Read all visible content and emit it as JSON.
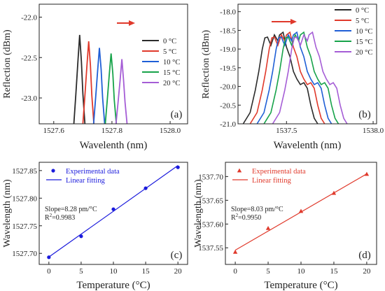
{
  "chart_data": [
    {
      "type": "line",
      "panel_label": "(a)",
      "xlabel": "Wavelenth (nm)",
      "ylabel": "Reflection (dBm)",
      "xlim": [
        1527.55,
        1528.06
      ],
      "ylim": [
        -23.32,
        -21.84
      ],
      "xticks": [
        1527.6,
        1527.8,
        1528.0
      ],
      "xtick_labels": [
        "1527.6",
        "1527.8",
        "1528.0"
      ],
      "yticks": [
        -22.0,
        -22.5,
        -23.0
      ],
      "ytick_labels": [
        "-22.0",
        "-22.5",
        "-23.0"
      ],
      "legend": {
        "position": "right",
        "entries": [
          "0   °C",
          "5   °C",
          "10 °C",
          "15 °C",
          "20 °C"
        ]
      },
      "annotation": "arrow pointing right (increasing temperature)",
      "series": [
        {
          "name": "0   °C",
          "color": "#2b2b2b",
          "x": [
            1527.669,
            1527.676,
            1527.683,
            1527.689,
            1527.695,
            1527.7,
            1527.707
          ],
          "y": [
            -23.32,
            -22.95,
            -22.55,
            -22.22,
            -22.55,
            -22.95,
            -23.32
          ]
        },
        {
          "name": "5   °C",
          "color": "#e0392b",
          "x": [
            1527.7,
            1527.707,
            1527.714,
            1527.72,
            1527.726,
            1527.731,
            1527.738
          ],
          "y": [
            -23.32,
            -22.97,
            -22.6,
            -22.3,
            -22.6,
            -22.97,
            -23.32
          ]
        },
        {
          "name": "10 °C",
          "color": "#1f5fd6",
          "x": [
            1527.737,
            1527.744,
            1527.751,
            1527.757,
            1527.763,
            1527.768,
            1527.775
          ],
          "y": [
            -23.32,
            -23.0,
            -22.65,
            -22.38,
            -22.65,
            -23.0,
            -23.32
          ]
        },
        {
          "name": "15 °C",
          "color": "#17a34a",
          "x": [
            1527.777,
            1527.784,
            1527.791,
            1527.797,
            1527.803,
            1527.808,
            1527.815
          ],
          "y": [
            -23.32,
            -23.02,
            -22.7,
            -22.45,
            -22.7,
            -23.02,
            -23.32
          ]
        },
        {
          "name": "20 °C",
          "color": "#a55dd6",
          "x": [
            1527.814,
            1527.821,
            1527.828,
            1527.834,
            1527.84,
            1527.845,
            1527.852
          ],
          "y": [
            -23.32,
            -23.05,
            -22.78,
            -22.52,
            -22.78,
            -23.05,
            -23.32
          ]
        }
      ]
    },
    {
      "type": "line",
      "panel_label": "(b)",
      "xlabel": "Wavelenth (nm)",
      "ylabel": "",
      "xlim": [
        1537.22,
        1538.02
      ],
      "ylim": [
        -21.0,
        -17.8
      ],
      "xticks": [
        1537.5,
        1538.0
      ],
      "xtick_labels": [
        "1537.5",
        "1538.0"
      ],
      "yticks": [
        -18.0,
        -18.5,
        -19.0,
        -19.5,
        -20.0,
        -20.5,
        -21.0
      ],
      "ytick_labels": [
        "-18.0",
        "-18.5",
        "-19.0",
        "-19.5",
        "-20.0",
        "-20.5",
        "-21.0"
      ],
      "legend": {
        "position": "top-right",
        "entries": [
          "0   °C",
          "5   °C",
          "10 °C",
          "15 °C",
          "20 °C"
        ]
      },
      "annotation": "arrow pointing right (increasing temperature)",
      "base_shape": {
        "dx": [
          -0.21,
          -0.17,
          -0.14,
          -0.12,
          -0.1,
          -0.085,
          -0.07,
          -0.05,
          -0.03,
          -0.01,
          0.0,
          0.02,
          0.04,
          0.06,
          0.08,
          0.1,
          0.12,
          0.14,
          0.16,
          0.18,
          0.2,
          0.22
        ],
        "y": [
          -21.0,
          -20.7,
          -20.1,
          -19.6,
          -19.0,
          -18.7,
          -18.68,
          -18.9,
          -18.62,
          -18.78,
          -18.62,
          -18.55,
          -18.95,
          -19.2,
          -19.6,
          -19.8,
          -19.95,
          -19.9,
          -20.05,
          -20.5,
          -20.85,
          -21.0
        ]
      },
      "series": [
        {
          "name": "0   °C",
          "color": "#2b2b2b",
          "peak_x": 1537.46
        },
        {
          "name": "5   °C",
          "color": "#e0392b",
          "peak_x": 1537.5
        },
        {
          "name": "10 °C",
          "color": "#1f5fd6",
          "peak_x": 1537.54
        },
        {
          "name": "15 °C",
          "color": "#17a34a",
          "peak_x": 1537.58
        },
        {
          "name": "20 °C",
          "color": "#a55dd6",
          "peak_x": 1537.63
        }
      ]
    },
    {
      "type": "scatter",
      "panel_label": "(c)",
      "xlabel": "Temperature (°C)",
      "ylabel": "Wavelength (nm)",
      "xlim": [
        -1.5,
        21.5
      ],
      "ylim": [
        1527.68,
        1527.865
      ],
      "xticks": [
        0,
        5,
        10,
        15,
        20
      ],
      "yticks": [
        1527.7,
        1527.75,
        1527.8,
        1527.85
      ],
      "ytick_labels": [
        "1527.70",
        "1527.75",
        "1527.80",
        "1527.85"
      ],
      "legend": {
        "position": "top-left",
        "entries": [
          "Experimental data",
          "Linear fitting"
        ]
      },
      "color": "#1a1adc",
      "series": [
        {
          "name": "Experimental data",
          "x": [
            0,
            5,
            10,
            15,
            20
          ],
          "y": [
            1527.693,
            1527.731,
            1527.78,
            1527.818,
            1527.856
          ]
        },
        {
          "name": "Linear fitting",
          "x": [
            0,
            20
          ],
          "y": [
            1527.6935,
            1527.8591
          ]
        }
      ],
      "annotations": [
        "Slope=8.28 pm/°C",
        "R²=0.9983"
      ]
    },
    {
      "type": "scatter",
      "panel_label": "(d)",
      "xlabel": "Temperature (°C)",
      "ylabel": "",
      "xlim": [
        -1.5,
        21.5
      ],
      "ylim": [
        1537.515,
        1537.73
      ],
      "xticks": [
        0,
        5,
        10,
        15,
        20
      ],
      "yticks": [
        1537.55,
        1537.6,
        1537.65,
        1537.7
      ],
      "ytick_labels": [
        "1537.55",
        "1537.60",
        "1537.65",
        "1537.70"
      ],
      "legend": {
        "position": "top-left",
        "entries": [
          "Experimental data",
          "Linear fitting"
        ]
      },
      "color": "#e0392b",
      "series": [
        {
          "name": "Experimental data",
          "x": [
            0,
            5,
            10,
            15,
            20
          ],
          "y": [
            1537.541,
            1537.591,
            1537.627,
            1537.665,
            1537.705
          ]
        },
        {
          "name": "Linear fitting",
          "x": [
            0,
            20
          ],
          "y": [
            1537.545,
            1537.7056
          ]
        }
      ],
      "annotations": [
        "Slope=8.03 pm/°C",
        "R²=0.9950"
      ]
    }
  ]
}
